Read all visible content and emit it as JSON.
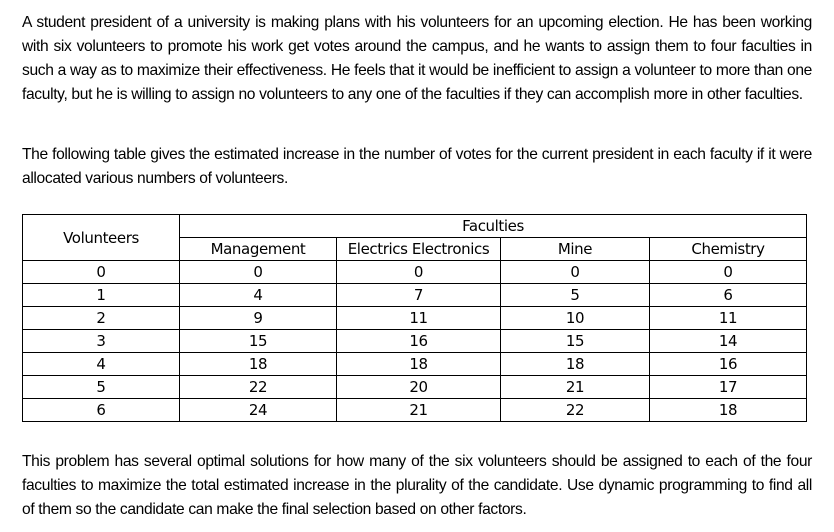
{
  "paragraphs": {
    "intro": "A student president of a university is making plans with his volunteers for an upcoming election. He has been working with six volunteers to promote his work get votes around the campus, and he wants to assign them to four faculties in such a way as to maximize their effectiveness. He feels that it would be inefficient to assign a volunteer to more than one faculty, but he is willing to assign no volunteers to any one of the faculties if they can accomplish more in other faculties.",
    "table_intro": "The following table gives the estimated increase in the number of votes for the current president in each faculty if it were allocated various numbers of volunteers.",
    "question": "This problem has several optimal solutions for how many of the six volunteers should be assigned to each of the four faculties to maximize the total estimated increase in the plurality of the candidate. Use dynamic programming to find all of them so the candidate can make the final selection based on other factors."
  },
  "table": {
    "row_header": "Volunteers",
    "group_header": "Faculties",
    "columns": [
      "Management",
      "Electrics Electronics",
      "Mine",
      "Chemistry"
    ],
    "rows": [
      {
        "volunteers": "0",
        "values": [
          "0",
          "0",
          "0",
          "0"
        ]
      },
      {
        "volunteers": "1",
        "values": [
          "4",
          "7",
          "5",
          "6"
        ]
      },
      {
        "volunteers": "2",
        "values": [
          "9",
          "11",
          "10",
          "11"
        ]
      },
      {
        "volunteers": "3",
        "values": [
          "15",
          "16",
          "15",
          "14"
        ]
      },
      {
        "volunteers": "4",
        "values": [
          "18",
          "18",
          "18",
          "16"
        ]
      },
      {
        "volunteers": "5",
        "values": [
          "22",
          "20",
          "21",
          "17"
        ]
      },
      {
        "volunteers": "6",
        "values": [
          "24",
          "21",
          "22",
          "18"
        ]
      }
    ]
  }
}
